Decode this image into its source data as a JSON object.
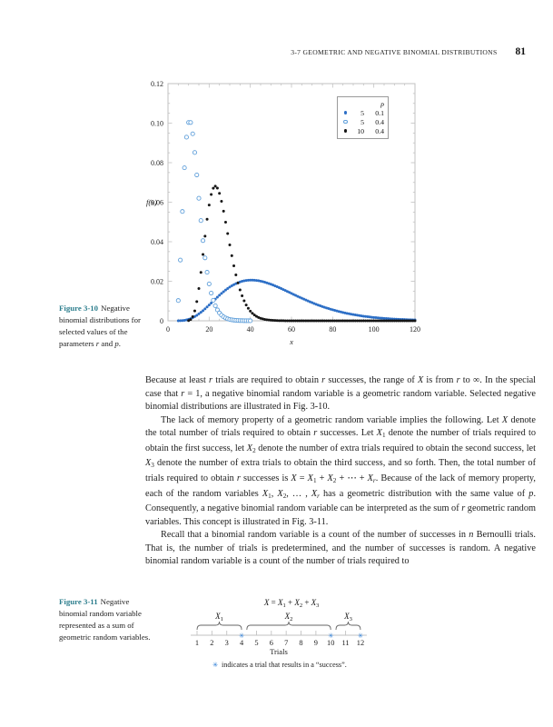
{
  "header": {
    "section": "3-7 GEOMETRIC AND NEGATIVE BINOMIAL DISTRIBUTIONS",
    "page_number": "81"
  },
  "colors": {
    "figure_label": "#2e7f8e",
    "blue": "#2d6fc6",
    "open_blue": "#5f9fda",
    "black": "#161616",
    "axis": "#c2c2c2",
    "success_marker": "#2f7fd6",
    "text": "#1c1c1c"
  },
  "figure310": {
    "caption_label": "Figure 3-10",
    "caption_segments": [
      [
        "Negative binomial distributions for selected values of the parameters ",
        ""
      ],
      [
        "r",
        "i"
      ],
      [
        " and ",
        ""
      ],
      [
        "p",
        "i"
      ],
      [
        ".",
        ""
      ]
    ]
  },
  "chart_data": {
    "type": "scatter",
    "model": "negative binomial pmf f(x) = C(x-1, r-1) p^r (1-p)^(x-r), plotted at integer x",
    "xlabel": "x",
    "ylabel": "f(x)",
    "xlim": [
      0,
      120
    ],
    "ylim": [
      0,
      0.12
    ],
    "xticks": [
      {
        "v": 0,
        "label": "0"
      },
      {
        "v": 20,
        "label": "20"
      },
      {
        "v": 40,
        "label": "40"
      },
      {
        "v": 60,
        "label": "60"
      },
      {
        "v": 80,
        "label": "80"
      },
      {
        "v": 100,
        "label": "100"
      },
      {
        "v": 120,
        "label": "120"
      }
    ],
    "yticks": [
      {
        "v": 0,
        "label": "0"
      },
      {
        "v": 0.02,
        "label": "0.02"
      },
      {
        "v": 0.04,
        "label": "0.04"
      },
      {
        "v": 0.06,
        "label": "0.06"
      },
      {
        "v": 0.08,
        "label": "0.08"
      },
      {
        "v": 0.1,
        "label": "0.10"
      },
      {
        "v": 0.12,
        "label": "0.12"
      }
    ],
    "xtick_minor_step": 5,
    "ytick_minor_step": 0.005,
    "grid": false,
    "legend": {
      "position": "top-right",
      "header": "p",
      "rows": [
        {
          "marker": "filled-blue",
          "r": 5,
          "p": "0.1"
        },
        {
          "marker": "open-blue",
          "r": 5,
          "p": "0.4"
        },
        {
          "marker": "filled-black",
          "r": 10,
          "p": "0.4"
        }
      ]
    },
    "series": [
      {
        "id": "r5-p01",
        "name": "r = 5, p = 0.1",
        "r": 5,
        "p": 0.1,
        "x_start": 5,
        "x_end": 120,
        "marker": "filled",
        "color_key": "blue",
        "peak_x": 40,
        "peak_f": 0.0206
      },
      {
        "id": "r10-p04",
        "name": "r = 10, p = 0.4",
        "r": 10,
        "p": 0.4,
        "x_start": 10,
        "x_end": 120,
        "marker": "filled",
        "color_key": "black",
        "peak_x": 23,
        "peak_f": 0.0681
      },
      {
        "id": "r5-p04",
        "name": "r = 5, p = 0.4",
        "r": 5,
        "p": 0.4,
        "x_start": 5,
        "x_end": 40,
        "marker": "open",
        "color_key": "open_blue",
        "peak_x": 10,
        "peak_f": 0.1003
      }
    ]
  },
  "body": {
    "paragraphs": [
      {
        "segments": [
          [
            "Because at least ",
            ""
          ],
          [
            "r",
            "i"
          ],
          [
            " trials are required to obtain ",
            ""
          ],
          [
            "r",
            "i"
          ],
          [
            " successes, the range of ",
            ""
          ],
          [
            "X",
            "i"
          ],
          [
            " is from ",
            ""
          ],
          [
            "r",
            "i"
          ],
          [
            " to ∞. In the special case that ",
            ""
          ],
          [
            "r",
            "i"
          ],
          [
            " = 1, a negative binomial random variable is a geometric random variable. Selected negative binomial distributions are illustrated in Fig. 3-10.",
            ""
          ]
        ]
      },
      {
        "segments": [
          [
            "The lack of memory property of a geometric random variable implies the following. Let ",
            ""
          ],
          [
            "X",
            "i"
          ],
          [
            " denote the total number of trials required to obtain ",
            ""
          ],
          [
            "r",
            "i"
          ],
          [
            " successes. Let ",
            ""
          ],
          [
            "X",
            "i"
          ],
          [
            "1",
            "sub"
          ],
          [
            " denote the number of trials required to obtain the first success, let ",
            ""
          ],
          [
            "X",
            "i"
          ],
          [
            "2",
            "sub"
          ],
          [
            " denote the number of extra trials required to obtain the second success, let ",
            ""
          ],
          [
            "X",
            "i"
          ],
          [
            "3",
            "sub"
          ],
          [
            " denote the number of extra trials to obtain the third success, and so forth. Then, the total number of trials required to obtain ",
            ""
          ],
          [
            "r",
            "i"
          ],
          [
            " successes is ",
            ""
          ],
          [
            "X",
            "i"
          ],
          [
            " = ",
            ""
          ],
          [
            "X",
            "i"
          ],
          [
            "1",
            "sub"
          ],
          [
            " + ",
            ""
          ],
          [
            "X",
            "i"
          ],
          [
            "2",
            "sub"
          ],
          [
            " + ⋯ + ",
            ""
          ],
          [
            "X",
            "i"
          ],
          [
            "r",
            "i sub"
          ],
          [
            ". Because of the lack of memory property, each of the random variables ",
            ""
          ],
          [
            "X",
            "i"
          ],
          [
            "1",
            "sub"
          ],
          [
            ", ",
            ""
          ],
          [
            "X",
            "i"
          ],
          [
            "2",
            "sub"
          ],
          [
            ", … , ",
            ""
          ],
          [
            "X",
            "i"
          ],
          [
            "r",
            "i sub"
          ],
          [
            " has a geometric distribution with the same value of ",
            ""
          ],
          [
            "p",
            "i"
          ],
          [
            ". Consequently, a negative binomial random variable can be interpreted as the sum of ",
            ""
          ],
          [
            "r",
            "i"
          ],
          [
            " geometric random variables. This concept is illustrated in Fig. 3-11.",
            ""
          ]
        ]
      },
      {
        "segments": [
          [
            "Recall that a binomial random variable is a count of the number of successes in ",
            ""
          ],
          [
            "n",
            "i"
          ],
          [
            " Bernoulli trials. That is, the number of trials is predetermined, and the number of successes is random. A negative binomial random variable is a count of the number of trials required to",
            ""
          ]
        ]
      }
    ]
  },
  "figure311": {
    "caption_label": "Figure 3-11",
    "caption_segments": [
      [
        "Negative binomial random variable represented as a sum of geometric random variables.",
        ""
      ]
    ],
    "diagram": {
      "formula_segments": [
        [
          "X",
          "i"
        ],
        [
          " = ",
          ""
        ],
        [
          "X",
          "i"
        ],
        [
          "1",
          "sub"
        ],
        [
          " + ",
          ""
        ],
        [
          "X",
          "i"
        ],
        [
          "2",
          "sub"
        ],
        [
          " + ",
          ""
        ],
        [
          "X",
          "i"
        ],
        [
          "3",
          "sub"
        ]
      ],
      "trials": [
        1,
        2,
        3,
        4,
        5,
        6,
        7,
        8,
        9,
        10,
        11,
        12
      ],
      "successes": [
        4,
        10,
        12
      ],
      "success_glyph": "✳",
      "axis_label": "Trials",
      "braces": [
        {
          "base": "X",
          "sub": "1",
          "from": 1,
          "to": 4
        },
        {
          "base": "X",
          "sub": "2",
          "from": 4.35,
          "to": 10
        },
        {
          "base": "X",
          "sub": "3",
          "from": 10.35,
          "to": 12
        }
      ],
      "note_text": "indicates a trial that results in a “success”."
    }
  }
}
